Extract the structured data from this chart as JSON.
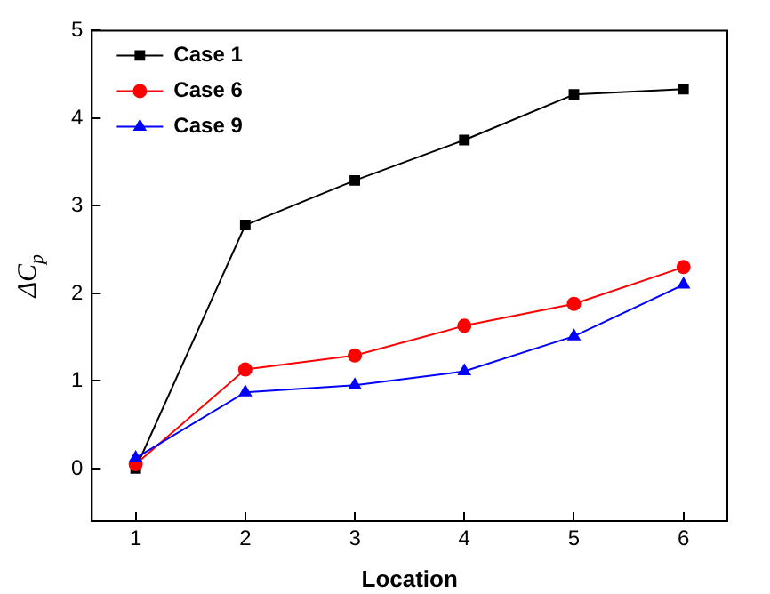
{
  "chart_data": {
    "type": "line",
    "xlabel": "Location",
    "ylabel": "ΔC$_{p}$",
    "x": [
      1,
      2,
      3,
      4,
      5,
      6
    ],
    "series": [
      {
        "name": "Case 1",
        "color": "#000000",
        "marker": "square",
        "values": [
          0.0,
          2.78,
          3.29,
          3.75,
          4.27,
          4.33
        ]
      },
      {
        "name": "Case 6",
        "color": "#ff0000",
        "marker": "circle",
        "values": [
          0.05,
          1.13,
          1.29,
          1.63,
          1.88,
          2.3
        ]
      },
      {
        "name": "Case 9",
        "color": "#0000ff",
        "marker": "triangle",
        "values": [
          0.12,
          0.87,
          0.95,
          1.11,
          1.51,
          2.1
        ]
      }
    ],
    "xlim": [
      0.6,
      6.4
    ],
    "xticks": [
      1,
      2,
      3,
      4,
      5,
      6
    ],
    "ylim": [
      -0.6,
      5
    ],
    "yticks": [
      0,
      1,
      2,
      3,
      4,
      5
    ],
    "grid": false,
    "legend": "top left",
    "line_style": "solid"
  }
}
